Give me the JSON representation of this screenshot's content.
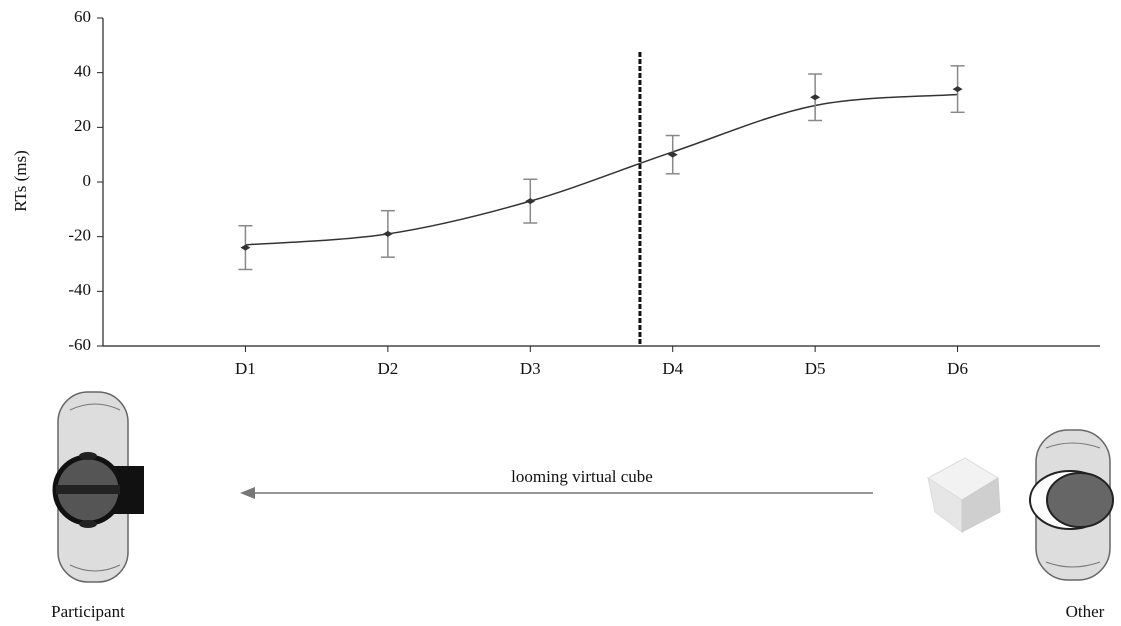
{
  "chart_data": {
    "type": "errorline",
    "ylabel": "RTs (ms)",
    "categories": [
      "D1",
      "D2",
      "D3",
      "D4",
      "D5",
      "D6"
    ],
    "values": [
      -24,
      -19,
      -7,
      10,
      31,
      34
    ],
    "errors": [
      8,
      8.5,
      8,
      7,
      8.5,
      8.5
    ],
    "fit": [
      -23,
      -19,
      -7,
      11,
      28,
      32
    ],
    "threshold_position": 3.77,
    "color": "#333333",
    "ylim": [
      -60,
      60
    ],
    "yticks": [
      -60,
      -40,
      -20,
      0,
      20,
      40,
      60
    ],
    "annotations": {
      "arrow": "looming virtual cube",
      "left": "Participant",
      "right": "Other"
    }
  }
}
